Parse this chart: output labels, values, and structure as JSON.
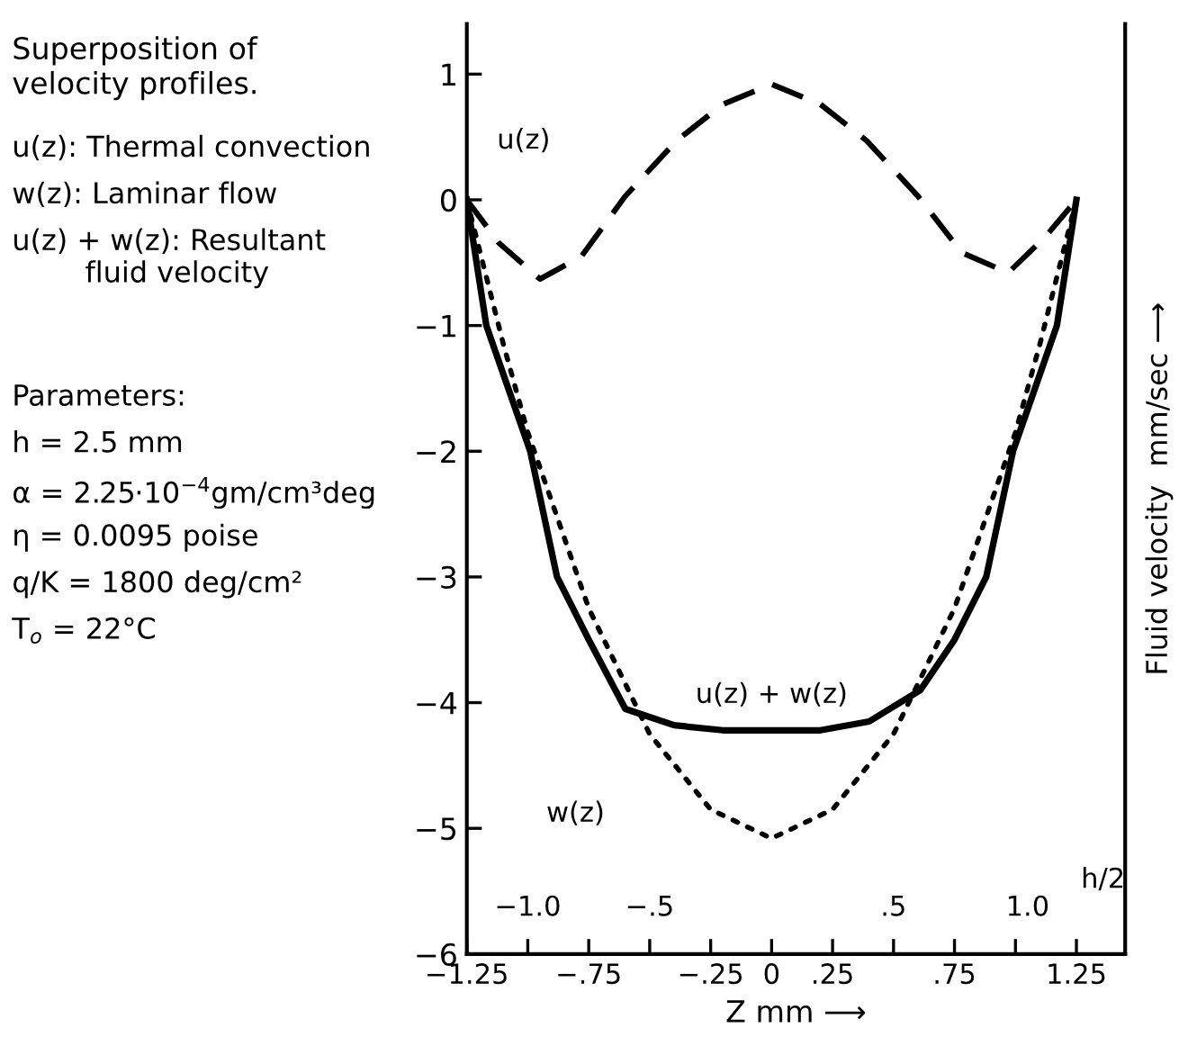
{
  "chart_data": {
    "type": "line",
    "title": "Superposition of\nvelocity profiles.",
    "xlabel": "Z mm ⟶",
    "ylabel": "Fluid velocity  mm/sec ⟶",
    "x": [
      -1.25,
      -1.12,
      -0.95,
      -0.78,
      -0.6,
      -0.39,
      -0.2,
      0,
      0.2,
      0.39,
      0.6,
      0.78,
      0.97,
      1.12,
      1.25
    ],
    "series": [
      {
        "name": "u(z)",
        "color": "#000000",
        "line_style": "dashed",
        "values": [
          0,
          -0.34,
          -0.63,
          -0.45,
          0.03,
          0.47,
          0.76,
          0.92,
          0.76,
          0.47,
          0.03,
          -0.42,
          -0.58,
          -0.3,
          0
        ]
      },
      {
        "name": "w(z)",
        "color": "#000000",
        "line_style": "dotted",
        "x": [
          -1.25,
          -1.1,
          -1.0,
          -0.75,
          -0.5,
          -0.25,
          0,
          0.25,
          0.5,
          0.75,
          1.0,
          1.1,
          1.25
        ],
        "values": [
          0,
          -1.15,
          -1.85,
          -3.25,
          -4.25,
          -4.85,
          -5.08,
          -4.85,
          -4.25,
          -3.25,
          -1.85,
          -1.15,
          0
        ]
      },
      {
        "name": "u(z) + w(z)",
        "color": "#000000",
        "line_style": "solid",
        "x": [
          -1.25,
          -1.17,
          -1.08,
          -0.99,
          -0.88,
          -0.75,
          -0.6,
          -0.4,
          -0.2,
          0,
          0.2,
          0.4,
          0.61,
          0.75,
          0.88,
          0.99,
          1.08,
          1.17,
          1.25
        ],
        "values": [
          0,
          -1.0,
          -1.5,
          -2.0,
          -3.0,
          -3.5,
          -4.05,
          -4.18,
          -4.22,
          -4.22,
          -4.22,
          -4.15,
          -3.9,
          -3.5,
          -3.0,
          -2.0,
          -1.5,
          -1.0,
          0
        ]
      }
    ],
    "xlim": [
      -1.25,
      1.45
    ],
    "ylim": [
      -6,
      1.4
    ],
    "xticks": [
      {
        "value": -1.25,
        "label": "−1.25"
      },
      {
        "value": -1.0,
        "label": null
      },
      {
        "value": -0.75,
        "label": "−.75"
      },
      {
        "value": -0.5,
        "label": null
      },
      {
        "value": -0.25,
        "label": "−.25"
      },
      0,
      {
        "value": 0.25,
        "label": ".25"
      },
      {
        "value": 0.5,
        "label": null
      },
      {
        "value": 0.75,
        "label": ".75"
      },
      {
        "value": 1.0,
        "label": null
      },
      {
        "value": 1.25,
        "label": "1.25"
      }
    ],
    "x2lim": [
      -1.25,
      1.45
    ],
    "x2ticks": [
      {
        "value": -1.0,
        "label": "−1.0"
      },
      {
        "value": -0.5,
        "label": "−.5"
      },
      {
        "value": 0.5,
        "label": ".5"
      },
      {
        "value": 1.05,
        "label": "1.0"
      }
    ],
    "x2label": "h/2",
    "yticks": [
      1,
      0,
      {
        "value": -1,
        "label": "−1"
      },
      {
        "value": -2,
        "label": "−2"
      },
      {
        "value": -3,
        "label": "−3"
      },
      {
        "value": -4,
        "label": "−4"
      },
      {
        "value": -5,
        "label": "−5"
      },
      {
        "value": -6,
        "label": "−6"
      }
    ],
    "grid": false,
    "legend": false,
    "annotations": [
      "u(z): Thermal convection",
      "w(z): Laminar flow",
      "u(z) + w(z): Resultant\n        fluid velocity",
      "Parameters:",
      "h = 2.5 mm",
      "α = 2.25·10$^{−4}$gm/cm³deg",
      "η = 0.0095 poise",
      "q/K = 1800 deg/cm²",
      "T$_{o}$ = 22°C"
    ]
  }
}
